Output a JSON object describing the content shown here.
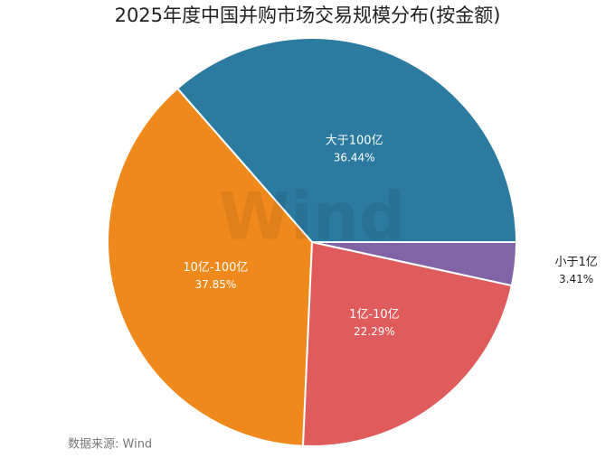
{
  "chart_data": {
    "type": "pie",
    "title": "2025年度中国并购市场交易规模分布(按金额)",
    "categories": [
      "大于100亿",
      "10亿-100亿",
      "1亿-10亿",
      "小于1亿"
    ],
    "values": [
      36.44,
      37.85,
      22.29,
      3.41
    ],
    "value_labels": [
      "36.44%",
      "37.85%",
      "22.29%",
      "3.41%"
    ],
    "colors": [
      "#2b7aa0",
      "#f0891c",
      "#e05b5c",
      "#8264a6"
    ],
    "watermark": "Wind",
    "source": "数据来源: Wind"
  }
}
